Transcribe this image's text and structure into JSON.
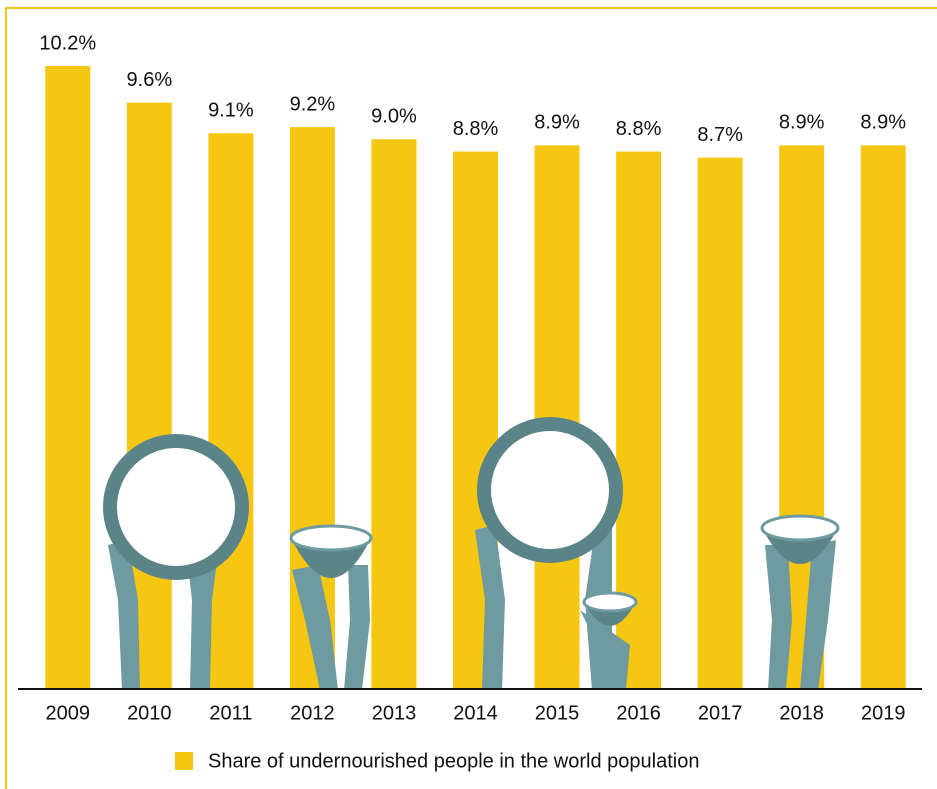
{
  "chart_data": {
    "type": "bar",
    "categories": [
      "2009",
      "2010",
      "2011",
      "2012",
      "2013",
      "2014",
      "2015",
      "2016",
      "2017",
      "2018",
      "2019"
    ],
    "values": [
      10.2,
      9.6,
      9.1,
      9.2,
      9.0,
      8.8,
      8.9,
      8.8,
      8.7,
      8.9,
      8.9
    ],
    "value_labels": [
      "10.2%",
      "9.6%",
      "9.1%",
      "9.2%",
      "9.0%",
      "8.8%",
      "8.9%",
      "8.8%",
      "8.7%",
      "8.9%",
      "8.9%"
    ],
    "color": "#f6c712",
    "legend": "Share of undernourished people in the world population"
  }
}
